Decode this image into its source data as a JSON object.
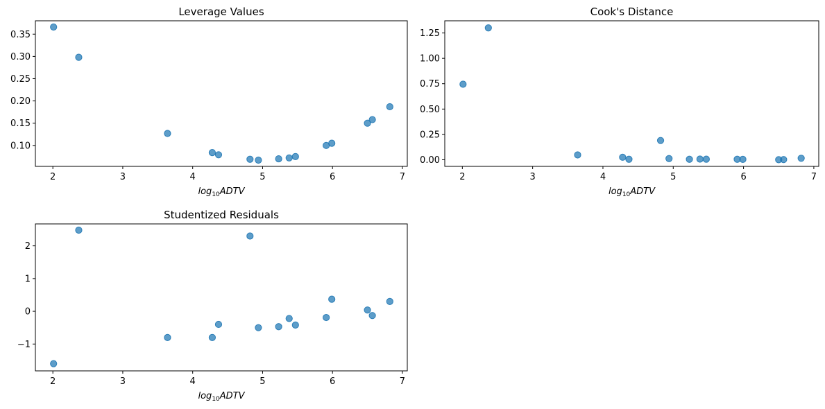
{
  "chart_data": [
    {
      "type": "scatter",
      "title": "Leverage Values",
      "xlabel": {
        "base": "log",
        "sub": "10",
        "rest": "ADTV"
      },
      "xlim": [
        1.75,
        7.07
      ],
      "ylim": [
        0.053,
        0.38
      ],
      "xticks": [
        2,
        3,
        4,
        5,
        6,
        7
      ],
      "yticks": [
        0.1,
        0.15,
        0.2,
        0.25,
        0.3,
        0.35
      ],
      "ytick_labels": [
        "0.10",
        "0.15",
        "0.20",
        "0.25",
        "0.30",
        "0.35"
      ],
      "x": [
        2.01,
        2.37,
        3.64,
        4.28,
        4.37,
        4.82,
        4.94,
        5.23,
        5.38,
        5.47,
        5.91,
        5.99,
        6.5,
        6.57,
        6.82
      ],
      "y": [
        0.366,
        0.298,
        0.127,
        0.084,
        0.079,
        0.069,
        0.067,
        0.07,
        0.072,
        0.075,
        0.1,
        0.105,
        0.15,
        0.158,
        0.187
      ],
      "color": "#1f77b4"
    },
    {
      "type": "scatter",
      "title": "Cook's Distance",
      "xlabel": {
        "base": "log",
        "sub": "10",
        "rest": "ADTV"
      },
      "xlim": [
        1.75,
        7.07
      ],
      "ylim": [
        -0.065,
        1.37
      ],
      "xticks": [
        2,
        3,
        4,
        5,
        6,
        7
      ],
      "yticks": [
        0.0,
        0.25,
        0.5,
        0.75,
        1.0,
        1.25
      ],
      "ytick_labels": [
        "0.00",
        "0.25",
        "0.50",
        "0.75",
        "1.00",
        "1.25"
      ],
      "x": [
        2.01,
        2.37,
        3.64,
        4.28,
        4.37,
        4.82,
        4.94,
        5.23,
        5.38,
        5.47,
        5.91,
        5.99,
        6.5,
        6.57,
        6.82
      ],
      "y": [
        0.745,
        1.3,
        0.048,
        0.025,
        0.005,
        0.19,
        0.012,
        0.005,
        0.007,
        0.006,
        0.005,
        0.004,
        0.001,
        0.002,
        0.015
      ],
      "color": "#1f77b4"
    },
    {
      "type": "scatter",
      "title": "Studentized Residuals",
      "xlabel": {
        "base": "log",
        "sub": "10",
        "rest": "ADTV"
      },
      "xlim": [
        1.75,
        7.07
      ],
      "ylim": [
        -1.82,
        2.67
      ],
      "xticks": [
        2,
        3,
        4,
        5,
        6,
        7
      ],
      "yticks": [
        -1,
        0,
        1,
        2
      ],
      "ytick_labels": [
        "−1",
        "0",
        "1",
        "2"
      ],
      "x": [
        2.01,
        2.37,
        3.64,
        4.28,
        4.37,
        4.82,
        4.94,
        5.23,
        5.38,
        5.47,
        5.91,
        5.99,
        6.5,
        6.57,
        6.82
      ],
      "y": [
        -1.6,
        2.48,
        -0.8,
        -0.8,
        -0.4,
        2.3,
        -0.5,
        -0.47,
        -0.22,
        -0.42,
        -0.19,
        0.37,
        0.04,
        -0.13,
        0.3
      ],
      "color": "#1f77b4"
    }
  ]
}
